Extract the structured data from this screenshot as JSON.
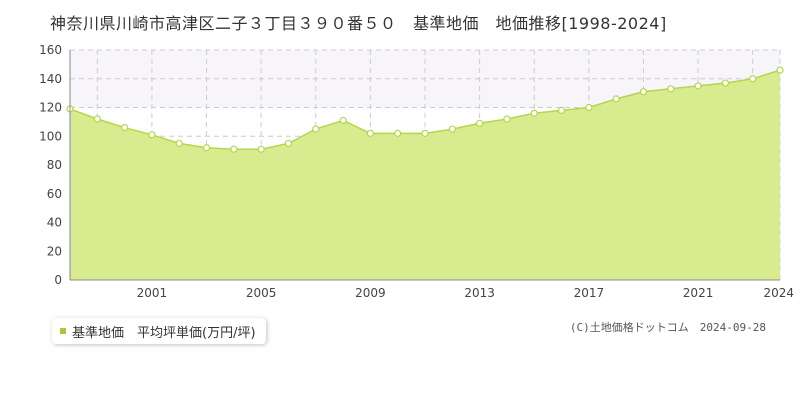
{
  "title": "神奈川県川崎市高津区二子３丁目３９０番５０　基準地価　地価推移[1998-2024]",
  "legend": {
    "label": "基準地価　平均坪単価(万円/坪)",
    "color": "#a4c93a"
  },
  "copyright": "(C)土地価格ドットコム　2024-09-28",
  "colors": {
    "fill": "#d9eb8f",
    "line": "#b5d64a",
    "marker_stroke": "#b5d64a",
    "marker_fill": "#ffffff",
    "band": "#f7f5fa",
    "grid": "#cccccc"
  },
  "chart_data": {
    "type": "area",
    "x": [
      1998,
      1999,
      2000,
      2001,
      2002,
      2003,
      2004,
      2005,
      2006,
      2007,
      2008,
      2009,
      2010,
      2011,
      2012,
      2013,
      2014,
      2015,
      2016,
      2017,
      2018,
      2019,
      2020,
      2021,
      2022,
      2023,
      2024
    ],
    "series": [
      {
        "values": [
          119,
          112,
          106,
          101,
          95,
          92,
          91,
          91,
          95,
          105,
          111,
          102,
          102,
          102,
          105,
          109,
          112,
          116,
          118,
          120,
          126,
          131,
          133,
          135,
          137,
          140,
          146
        ]
      }
    ],
    "xlim": [
      1998,
      2024
    ],
    "ylim": [
      0,
      160
    ],
    "yticks": [
      0,
      20,
      40,
      60,
      80,
      100,
      120,
      140,
      160
    ],
    "xticks": [
      2001,
      2005,
      2009,
      2013,
      2017,
      2021,
      2024
    ],
    "grid": true
  }
}
